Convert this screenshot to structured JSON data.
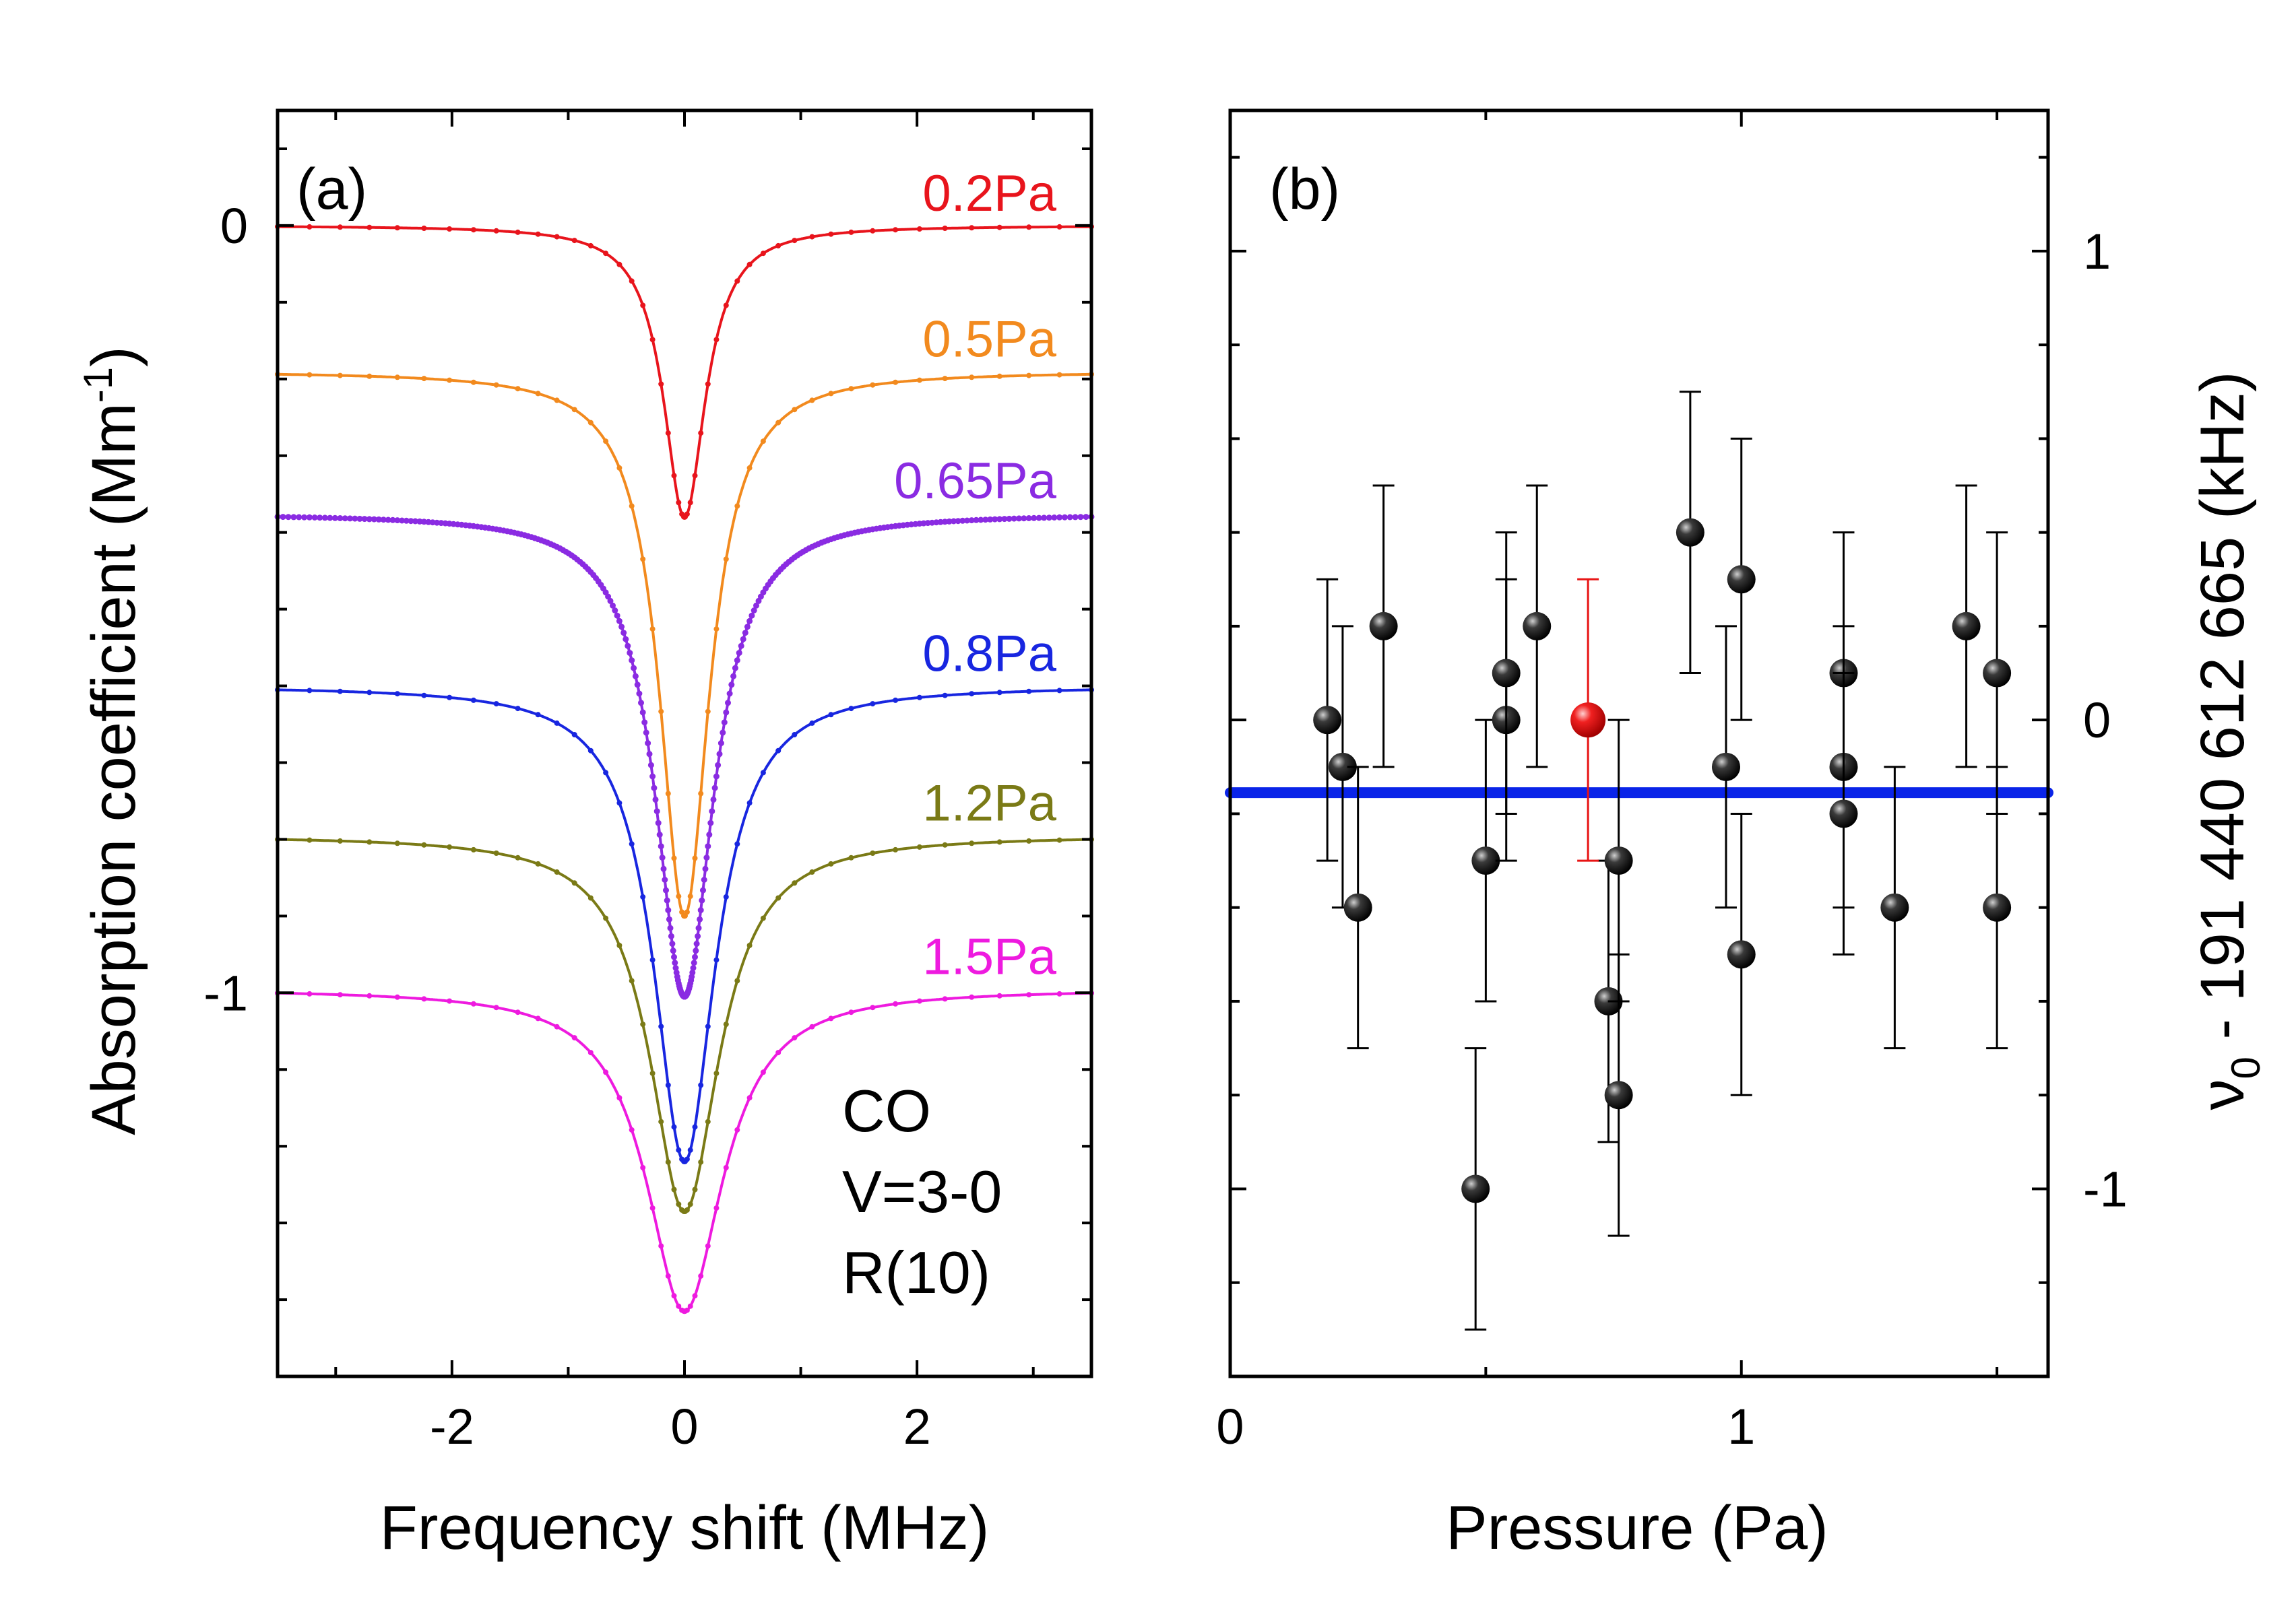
{
  "chart_data": [
    {
      "type": "line",
      "panel": "(a)",
      "xlabel": "Frequency shift (MHz)",
      "ylabel": "Absorption coefficient (Mm",
      "ylabel_sup": "-1",
      "ylabel_close": ")",
      "xlim": [
        -3.5,
        3.5
      ],
      "ylim": [
        -1.5,
        0.15
      ],
      "xticks": [
        -2,
        0,
        2
      ],
      "yticks": [
        0,
        -1
      ],
      "annotation": [
        "CO",
        "V=3-0",
        "R(10)"
      ],
      "series": [
        {
          "name": "0.2Pa",
          "color": "#e8141c",
          "offset": 0,
          "depth": 0.38,
          "width": 0.22,
          "points": 51
        },
        {
          "name": "0.5Pa",
          "color": "#f28a1e",
          "offset": -0.19,
          "depth": 0.71,
          "width": 0.26,
          "points": 51
        },
        {
          "name": "0.65Pa",
          "color": "#8a2be2",
          "offset": -0.375,
          "depth": 0.63,
          "width": 0.3,
          "points": 301
        },
        {
          "name": "0.8Pa",
          "color": "#1826e0",
          "offset": -0.6,
          "depth": 0.62,
          "width": 0.32,
          "points": 51
        },
        {
          "name": "1.2Pa",
          "color": "#7a7a16",
          "offset": -0.795,
          "depth": 0.49,
          "width": 0.36,
          "points": 51
        },
        {
          "name": "1.5Pa",
          "color": "#ee1adf",
          "offset": -0.995,
          "depth": 0.42,
          "width": 0.4,
          "points": 51
        }
      ]
    },
    {
      "type": "scatter",
      "panel": "(b)",
      "xlabel": "Pressure (Pa)",
      "ylabel_prefix": "ν",
      "ylabel_sub": "0",
      "ylabel_rest": " - 191 440 612 665 (kHz)",
      "xlim": [
        0,
        1.6
      ],
      "ylim": [
        -1.4,
        1.3
      ],
      "xticks": [
        0,
        1
      ],
      "yticks": [
        1,
        0,
        -1
      ],
      "mean_line": {
        "value": -0.155,
        "color": "#0a24e8"
      },
      "highlight": {
        "x": 0.7,
        "y": 0.0,
        "err": 0.3,
        "color": "#e81414"
      },
      "points": [
        {
          "x": 0.19,
          "y": 0.0,
          "err": 0.3
        },
        {
          "x": 0.22,
          "y": -0.1,
          "err": 0.3
        },
        {
          "x": 0.25,
          "y": -0.4,
          "err": 0.3
        },
        {
          "x": 0.3,
          "y": 0.2,
          "err": 0.3
        },
        {
          "x": 0.48,
          "y": -1.0,
          "err": 0.3
        },
        {
          "x": 0.5,
          "y": -0.3,
          "err": 0.3
        },
        {
          "x": 0.54,
          "y": 0.0,
          "err": 0.3
        },
        {
          "x": 0.54,
          "y": 0.1,
          "err": 0.3
        },
        {
          "x": 0.6,
          "y": 0.2,
          "err": 0.3
        },
        {
          "x": 0.74,
          "y": -0.6,
          "err": 0.3
        },
        {
          "x": 0.76,
          "y": -0.3,
          "err": 0.3
        },
        {
          "x": 0.76,
          "y": -0.8,
          "err": 0.3
        },
        {
          "x": 0.9,
          "y": 0.4,
          "err": 0.3
        },
        {
          "x": 0.97,
          "y": -0.1,
          "err": 0.3
        },
        {
          "x": 1.0,
          "y": 0.3,
          "err": 0.3
        },
        {
          "x": 1.0,
          "y": -0.5,
          "err": 0.3
        },
        {
          "x": 1.2,
          "y": 0.1,
          "err": 0.3
        },
        {
          "x": 1.2,
          "y": -0.1,
          "err": 0.3
        },
        {
          "x": 1.2,
          "y": -0.2,
          "err": 0.3
        },
        {
          "x": 1.3,
          "y": -0.4,
          "err": 0.3
        },
        {
          "x": 1.44,
          "y": 0.2,
          "err": 0.3
        },
        {
          "x": 1.5,
          "y": 0.1,
          "err": 0.3
        },
        {
          "x": 1.5,
          "y": -0.4,
          "err": 0.3
        }
      ]
    }
  ]
}
